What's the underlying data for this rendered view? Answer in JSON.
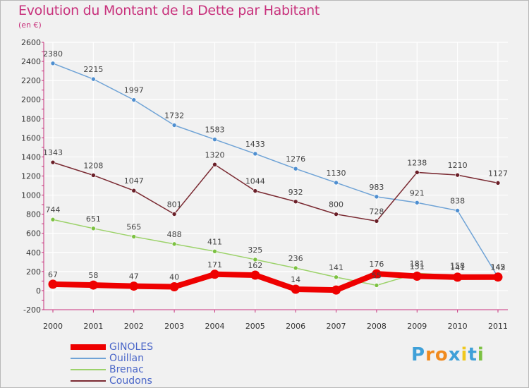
{
  "title": "Evolution du Montant de la Dette par Habitant",
  "subtitle": "(en €)",
  "logo": {
    "letters": [
      "P",
      "r",
      "o",
      "x",
      "i",
      "t",
      "i"
    ],
    "colors": [
      "#3fa0d8",
      "#f08a1e",
      "#f08a1e",
      "#3fa0d8",
      "#f0c81e",
      "#3fa0d8",
      "#7cc142"
    ]
  },
  "chart_data": {
    "type": "line",
    "x": [
      "2000",
      "2001",
      "2002",
      "2003",
      "2004",
      "2005",
      "2006",
      "2007",
      "2008",
      "2009",
      "2010",
      "2011"
    ],
    "ylim": [
      -200,
      2600
    ],
    "yticks": [
      -200,
      0,
      200,
      400,
      600,
      800,
      1000,
      1200,
      1400,
      1600,
      1800,
      2000,
      2200,
      2400,
      2600
    ],
    "grid": true,
    "legend_position": "bottom-left",
    "series": [
      {
        "name": "Ouillan",
        "color": "#6fa3d6",
        "marker": "#4f8fd0",
        "width": 1.5,
        "values": [
          2380,
          2215,
          1997,
          1732,
          1583,
          1433,
          1276,
          1130,
          983,
          921,
          838,
          142
        ]
      },
      {
        "name": "Brenac",
        "color": "#9cd26a",
        "marker": "#7cc142",
        "width": 1.5,
        "values": [
          744,
          651,
          565,
          488,
          411,
          325,
          236,
          141,
          55,
          181,
          158,
          145
        ]
      },
      {
        "name": "Coudons",
        "color": "#7a2a32",
        "marker": "#6a1f28",
        "width": 1.5,
        "values": [
          1343,
          1208,
          1047,
          801,
          1320,
          1044,
          932,
          800,
          728,
          1238,
          1210,
          1127
        ]
      },
      {
        "name": "GINOLES",
        "color": "#ee0000",
        "marker": "#ee0000",
        "width": 8,
        "values": [
          67,
          58,
          47,
          40,
          171,
          162,
          14,
          6,
          176,
          151,
          141,
          142
        ]
      }
    ],
    "legend_order": [
      "GINOLES",
      "Ouillan",
      "Brenac",
      "Coudons"
    ],
    "data_labels": [
      {
        "series": "Ouillan",
        "labels": [
          "2380",
          "2215",
          "1997",
          "1732",
          "1583",
          "1433",
          "1276",
          "1130",
          "983",
          "921",
          "838",
          "142"
        ]
      },
      {
        "series": "Brenac",
        "labels": [
          "744",
          "651",
          "565",
          "488",
          "411",
          "325",
          "236",
          "141",
          "55",
          "181",
          "158",
          "145"
        ]
      },
      {
        "series": "Coudons",
        "labels": [
          "1343",
          "1208",
          "1047",
          "801",
          "1320",
          "1044",
          "932",
          "800",
          "728",
          "1238",
          "1210",
          "1127"
        ]
      },
      {
        "series": "GINOLES",
        "labels": [
          "67",
          "58",
          "47",
          "40",
          "171",
          "162",
          "14",
          "",
          "176",
          "151",
          "141",
          "142"
        ]
      }
    ]
  }
}
